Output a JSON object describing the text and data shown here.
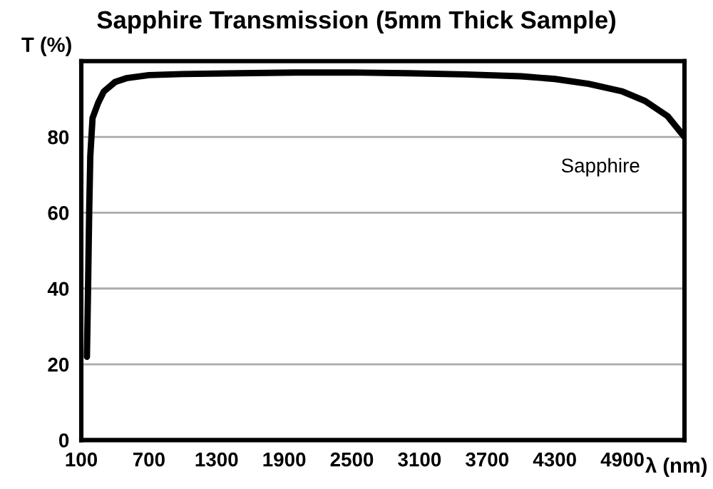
{
  "chart_data": {
    "type": "line",
    "title": "Sapphire Transmission (5mm Thick Sample)",
    "xlabel": "λ (nm)",
    "ylabel": "T (%)",
    "x": [
      150,
      160,
      170,
      180,
      200,
      250,
      300,
      400,
      500,
      700,
      1000,
      1500,
      2000,
      2500,
      3000,
      3500,
      4000,
      4300,
      4600,
      4900,
      5100,
      5300,
      5450
    ],
    "series": [
      {
        "name": "Sapphire",
        "color": "#000000",
        "values": [
          22,
          40,
          60,
          75,
          85,
          89,
          92,
          94.5,
          95.5,
          96.3,
          96.6,
          96.8,
          97,
          97,
          96.8,
          96.5,
          96,
          95.3,
          94,
          92,
          89.5,
          85.5,
          80
        ]
      }
    ],
    "xlim": [
      100,
      5450
    ],
    "xticks": [
      100,
      700,
      1300,
      1900,
      2500,
      3100,
      3700,
      4300,
      4900
    ],
    "ylim": [
      0,
      100
    ],
    "yticks": [
      0,
      20,
      40,
      60,
      80
    ],
    "grid": "y",
    "legend": false,
    "marker": "none",
    "line_style": "solid"
  }
}
